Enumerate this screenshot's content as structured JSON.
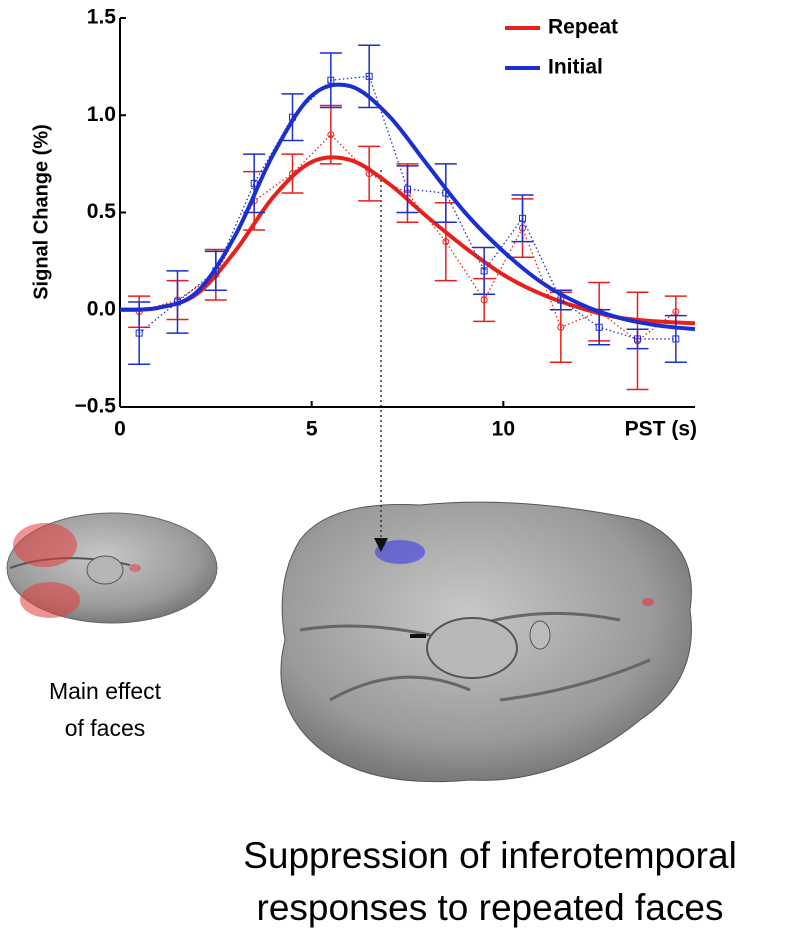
{
  "chart_data": {
    "type": "line",
    "ylabel": "Signal Change (%)",
    "xlabel": "PST (s)",
    "xlim": [
      0,
      15
    ],
    "ylim": [
      -0.5,
      1.5
    ],
    "xticks": [
      0,
      5,
      10
    ],
    "yticks": [
      {
        "value": -0.5,
        "label": "−0.5"
      },
      {
        "value": 0,
        "label": "0.0"
      },
      0.5,
      {
        "value": 1,
        "label": "1.0"
      },
      1.5
    ],
    "legend": "upper right",
    "series": [
      {
        "name": "Repeat",
        "color": "#e8201c",
        "marker": "circle",
        "x": [
          0.5,
          1.5,
          2.5,
          3.5,
          4.5,
          5.5,
          6.5,
          7.5,
          8.5,
          9.5,
          10.5,
          11.5,
          12.5,
          13.5,
          14.5
        ],
        "values": [
          -0.01,
          0.05,
          0.18,
          0.56,
          0.7,
          0.9,
          0.7,
          0.6,
          0.35,
          0.05,
          0.42,
          -0.09,
          -0.01,
          -0.16,
          -0.01
        ],
        "errors": [
          0.08,
          0.1,
          0.13,
          0.15,
          0.1,
          0.15,
          0.14,
          0.15,
          0.2,
          0.11,
          0.15,
          0.18,
          0.15,
          0.25,
          0.08
        ],
        "fit_x": [
          0,
          1,
          2,
          3,
          4,
          5,
          6,
          7,
          8,
          9,
          10,
          11,
          12,
          13,
          14,
          15
        ],
        "fit": [
          0,
          0.01,
          0.08,
          0.3,
          0.58,
          0.76,
          0.77,
          0.65,
          0.48,
          0.32,
          0.18,
          0.08,
          0.01,
          -0.04,
          -0.06,
          -0.07
        ]
      },
      {
        "name": "Initial",
        "color": "#1a2fd0",
        "marker": "square",
        "x": [
          0.5,
          1.5,
          2.5,
          3.5,
          4.5,
          5.5,
          6.5,
          7.5,
          8.5,
          9.5,
          10.5,
          11.5,
          12.5,
          13.5,
          14.5
        ],
        "values": [
          -0.12,
          0.04,
          0.2,
          0.65,
          0.99,
          1.18,
          1.2,
          0.62,
          0.6,
          0.2,
          0.47,
          0.05,
          -0.09,
          -0.15,
          -0.15
        ],
        "errors": [
          0.16,
          0.16,
          0.1,
          0.15,
          0.12,
          0.14,
          0.16,
          0.12,
          0.15,
          0.12,
          0.12,
          0.05,
          0.09,
          0.05,
          0.12
        ],
        "fit_x": [
          0,
          1,
          2,
          3,
          4,
          5,
          6,
          7,
          8,
          9,
          10,
          11,
          12,
          13,
          14,
          15
        ],
        "fit": [
          0,
          0.01,
          0.09,
          0.38,
          0.8,
          1.1,
          1.15,
          1.0,
          0.75,
          0.5,
          0.3,
          0.14,
          0.03,
          -0.04,
          -0.08,
          -0.1
        ]
      }
    ]
  },
  "panels": {
    "left_label": [
      "Main effect",
      "of faces"
    ],
    "caption": [
      "Suppression of inferotemporal",
      "responses to repeated faces"
    ]
  }
}
